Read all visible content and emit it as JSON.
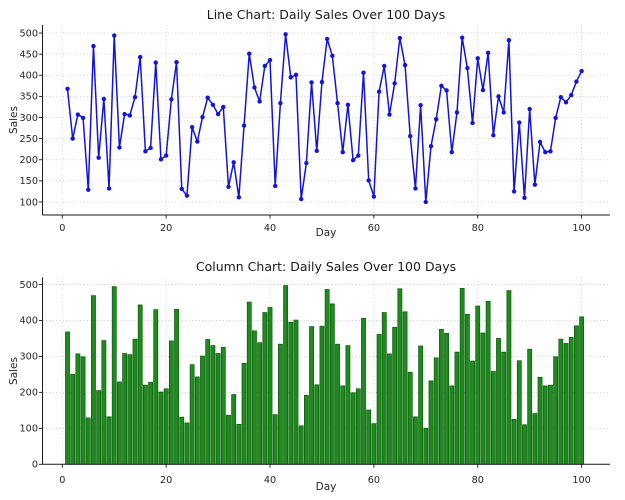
{
  "page": {
    "background": "#ffffff"
  },
  "chart_data": [
    {
      "type": "line",
      "title": "Line Chart: Daily Sales Over 100 Days",
      "xlabel": "Day",
      "ylabel": "Sales",
      "x_start": 1,
      "x_range": [
        1,
        100
      ],
      "values": [
        368,
        250,
        307,
        299,
        129,
        469,
        205,
        344,
        132,
        494,
        229,
        308,
        305,
        348,
        443,
        220,
        228,
        430,
        201,
        210,
        343,
        431,
        131,
        115,
        277,
        243,
        301,
        347,
        330,
        308,
        325,
        136,
        194,
        111,
        281,
        451,
        371,
        338,
        422,
        436,
        138,
        334,
        497,
        395,
        401,
        107,
        192,
        383,
        221,
        384,
        486,
        446,
        334,
        218,
        330,
        199,
        210,
        406,
        151,
        113,
        361,
        422,
        307,
        381,
        488,
        424,
        256,
        132,
        329,
        100,
        232,
        296,
        375,
        364,
        218,
        312,
        489,
        417,
        287,
        440,
        365,
        453,
        258,
        350,
        312,
        483,
        125,
        288,
        110,
        320,
        141,
        242,
        218,
        220,
        299,
        348,
        336,
        353,
        385,
        410
      ],
      "xticks": [
        0,
        20,
        40,
        60,
        80,
        100
      ],
      "yticks": [
        100,
        150,
        200,
        250,
        300,
        350,
        400,
        450,
        500
      ],
      "xlim": [
        -3.8,
        105.5
      ],
      "ylim": [
        69,
        517
      ],
      "grid": true,
      "grid_style": "dotted",
      "legend": "none",
      "colors": {
        "line": "#1414d8",
        "marker": "#1414d8"
      }
    },
    {
      "type": "bar",
      "title": "Column Chart: Daily Sales Over 100 Days",
      "xlabel": "Day",
      "ylabel": "Sales",
      "x_start": 1,
      "x_range": [
        1,
        100
      ],
      "values": [
        368,
        250,
        307,
        299,
        129,
        469,
        205,
        344,
        132,
        494,
        229,
        308,
        305,
        348,
        443,
        220,
        228,
        430,
        201,
        210,
        343,
        431,
        131,
        115,
        277,
        243,
        301,
        347,
        330,
        308,
        325,
        136,
        194,
        111,
        281,
        451,
        371,
        338,
        422,
        436,
        138,
        334,
        497,
        395,
        401,
        107,
        192,
        383,
        221,
        384,
        486,
        446,
        334,
        218,
        330,
        199,
        210,
        406,
        151,
        113,
        361,
        422,
        307,
        381,
        488,
        424,
        256,
        132,
        329,
        100,
        232,
        296,
        375,
        364,
        218,
        312,
        489,
        417,
        287,
        440,
        365,
        453,
        258,
        350,
        312,
        483,
        125,
        288,
        110,
        320,
        141,
        242,
        218,
        220,
        299,
        348,
        336,
        353,
        385,
        410
      ],
      "xticks": [
        0,
        20,
        40,
        60,
        80,
        100
      ],
      "yticks": [
        0,
        100,
        200,
        300,
        400,
        500
      ],
      "xlim": [
        -3.8,
        105.5
      ],
      "ylim": [
        0,
        520
      ],
      "grid": true,
      "grid_style": "dotted",
      "legend": "none",
      "colors": {
        "bar_fill": "#1f8b1f",
        "bar_edge": "#0c5c0c"
      }
    }
  ],
  "style": {
    "grid_color": "#c9c9c9",
    "spine_color": "#1a1a1a",
    "tick_text_color": "#262626"
  }
}
